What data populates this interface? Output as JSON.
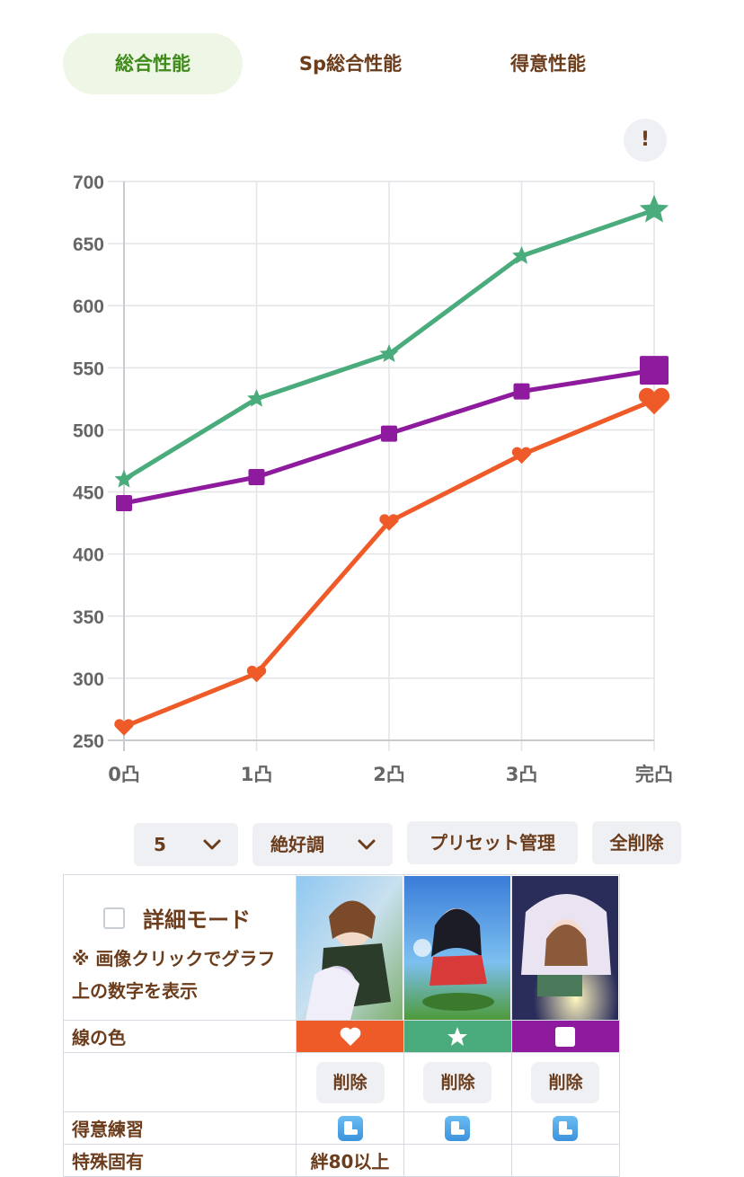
{
  "tabs": [
    {
      "label": "総合性能",
      "active": true
    },
    {
      "label": "Sp総合性能",
      "active": false
    },
    {
      "label": "得意性能",
      "active": false
    }
  ],
  "info_button": "!",
  "chart_data": {
    "type": "line",
    "categories": [
      "0凸",
      "1凸",
      "2凸",
      "3凸",
      "完凸"
    ],
    "ylim": [
      250,
      700
    ],
    "yticks": [
      250,
      300,
      350,
      400,
      450,
      500,
      550,
      600,
      650,
      700
    ],
    "grid": true,
    "series": [
      {
        "marker": "heart",
        "color": "#ee5a28",
        "values": [
          261,
          304,
          426,
          480,
          524
        ]
      },
      {
        "marker": "star",
        "color": "#4aab7c",
        "values": [
          460,
          525,
          561,
          640,
          677
        ]
      },
      {
        "marker": "square",
        "color": "#8e1b9e",
        "values": [
          441,
          462,
          497,
          531,
          548
        ]
      }
    ]
  },
  "controls": {
    "level": "5",
    "condition": "絶好調",
    "preset": "プリセット管理",
    "delete_all": "全削除"
  },
  "table": {
    "detail_mode": "詳細モード",
    "note": "※ 画像クリックでグラフ上の数字を表示",
    "line_color_label": "線の色",
    "delete_label": "削除",
    "specialty_label": "得意練習",
    "special_unique_label": "特殊固有",
    "cards": [
      {
        "swatch_color": "#ee5a28",
        "icon": "heart-icon",
        "unique": "絆80以上"
      },
      {
        "swatch_color": "#4aab7c",
        "icon": "star-icon",
        "unique": ""
      },
      {
        "swatch_color": "#8e1b9e",
        "icon": "square-icon",
        "unique": ""
      }
    ]
  }
}
